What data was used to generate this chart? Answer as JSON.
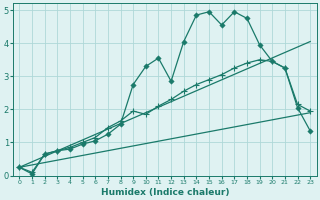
{
  "xlabel": "Humidex (Indice chaleur)",
  "bg_color": "#dff2f2",
  "grid_color": "#aed8d8",
  "line_color": "#1a7a6a",
  "xlim": [
    -0.5,
    23.5
  ],
  "ylim": [
    0,
    5.2
  ],
  "xticks": [
    0,
    1,
    2,
    3,
    4,
    5,
    6,
    7,
    8,
    9,
    10,
    11,
    12,
    13,
    14,
    15,
    16,
    17,
    18,
    19,
    20,
    21,
    22,
    23
  ],
  "yticks": [
    0,
    1,
    2,
    3,
    4,
    5
  ],
  "line1_x": [
    0,
    1,
    2,
    3,
    4,
    5,
    6,
    7,
    8,
    9,
    10,
    11,
    12,
    13,
    14,
    15,
    16,
    17,
    18,
    19,
    20,
    21,
    22,
    23
  ],
  "line1_y": [
    0.25,
    0.05,
    0.65,
    0.75,
    0.8,
    0.95,
    1.05,
    1.25,
    1.55,
    2.75,
    3.3,
    3.55,
    2.85,
    4.05,
    4.85,
    4.95,
    4.55,
    4.95,
    4.75,
    3.95,
    3.45,
    3.25,
    2.05,
    1.35
  ],
  "line2_x": [
    0,
    1,
    2,
    3,
    4,
    5,
    6,
    7,
    8,
    9,
    10,
    11,
    12,
    13,
    14,
    15,
    16,
    17,
    18,
    19,
    20,
    21,
    22,
    23
  ],
  "line2_y": [
    0.25,
    0.1,
    0.65,
    0.75,
    0.85,
    1.0,
    1.15,
    1.45,
    1.65,
    1.95,
    1.85,
    2.1,
    2.3,
    2.55,
    2.75,
    2.9,
    3.05,
    3.25,
    3.4,
    3.5,
    3.45,
    3.25,
    2.15,
    1.95
  ],
  "line3_x": [
    0,
    23
  ],
  "line3_y": [
    0.25,
    4.05
  ],
  "line4_x": [
    0,
    23
  ],
  "line4_y": [
    0.25,
    1.9
  ]
}
